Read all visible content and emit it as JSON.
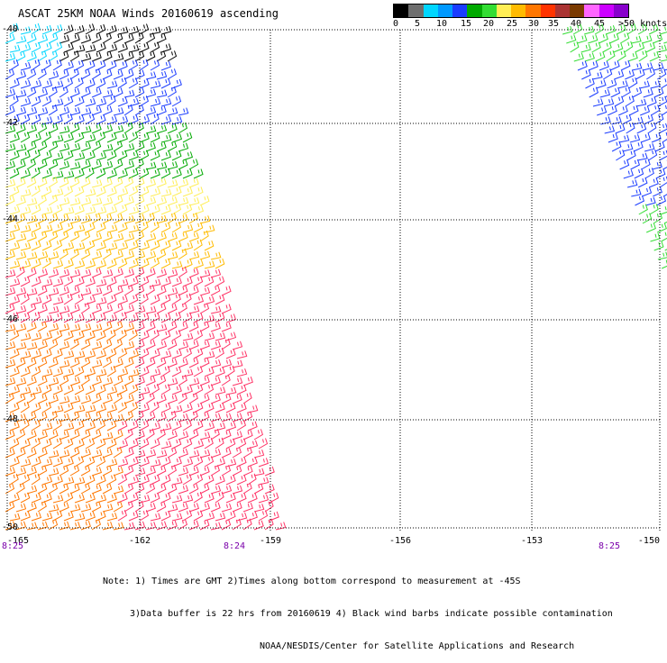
{
  "title": "ASCAT 25KM NOAA Winds 20160619 ascending",
  "scale": {
    "colors": [
      "#000000",
      "#6e6e6e",
      "#00d6ff",
      "#0099ff",
      "#1a3cff",
      "#00aa00",
      "#33dd33",
      "#ffee55",
      "#ffbb00",
      "#ff7700",
      "#ff3300",
      "#aa3333",
      "#7a3a00",
      "#ff66ff",
      "#cc00ff",
      "#8800cc"
    ],
    "labels": [
      "0",
      "5",
      "10",
      "15",
      "20",
      "25",
      "30",
      "35",
      "40",
      "45",
      ">50 knots"
    ]
  },
  "map": {
    "lat_ticks": [
      "-40",
      "-42",
      "-44",
      "-46",
      "-48",
      "-50"
    ],
    "lon_ticks": [
      "-165",
      "-162",
      "-159",
      "-156",
      "-153",
      "-150"
    ],
    "time_labels": [
      "8:25",
      "8:24",
      "8:25"
    ]
  },
  "notes": {
    "line1": "Note: 1) Times are GMT 2)Times along bottom correspond to measurement at -45S",
    "line2": "3)Data buffer is 22 hrs from 20160619 4) Black wind barbs indicate possible contamination",
    "line3": "NOAA/NESDIS/Center for Satellite Applications and Research"
  }
}
